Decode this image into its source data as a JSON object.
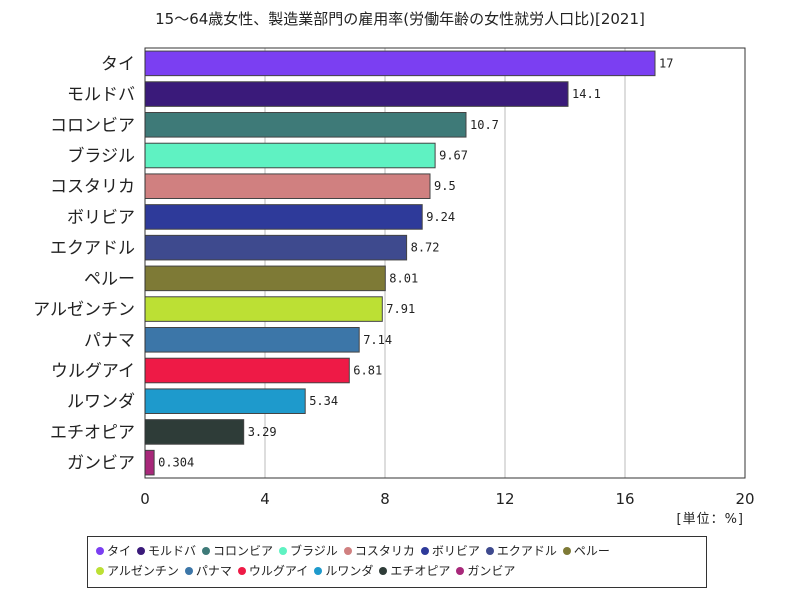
{
  "chart_data": {
    "type": "bar",
    "orientation": "horizontal",
    "title": "15～64歳女性、製造業部門の雇用率(労働年齢の女性就労人口比)[2021]",
    "unit": "[単位：%]",
    "categories": [
      "タイ",
      "モルドバ",
      "コロンビア",
      "ブラジル",
      "コスタリカ",
      "ボリビア",
      "エクアドル",
      "ペルー",
      "アルゼンチン",
      "パナマ",
      "ウルグアイ",
      "ルワンダ",
      "エチオピア",
      "ガンビア"
    ],
    "values": [
      17,
      14.1,
      10.7,
      9.67,
      9.5,
      9.24,
      8.72,
      8.01,
      7.91,
      7.14,
      6.81,
      5.34,
      3.29,
      0.304
    ],
    "value_labels": [
      "17",
      "14.1",
      "10.7",
      "9.67",
      "9.5",
      "9.24",
      "8.72",
      "8.01",
      "7.91",
      "7.14",
      "6.81",
      "5.34",
      "3.29",
      "0.304"
    ],
    "colors": [
      "#7B3FF2",
      "#3A1A7A",
      "#3E7A78",
      "#5FF2C2",
      "#D08080",
      "#2E3A9A",
      "#3E4A8E",
      "#7E7A36",
      "#BCE034",
      "#3C76A8",
      "#EE1A46",
      "#1E9ACC",
      "#2E3C38",
      "#A8287A"
    ],
    "xlim": [
      0,
      20
    ],
    "xticks": [
      "0",
      "4",
      "8",
      "12",
      "16",
      "20"
    ],
    "grid": "vertical",
    "legend_position": "bottom"
  }
}
